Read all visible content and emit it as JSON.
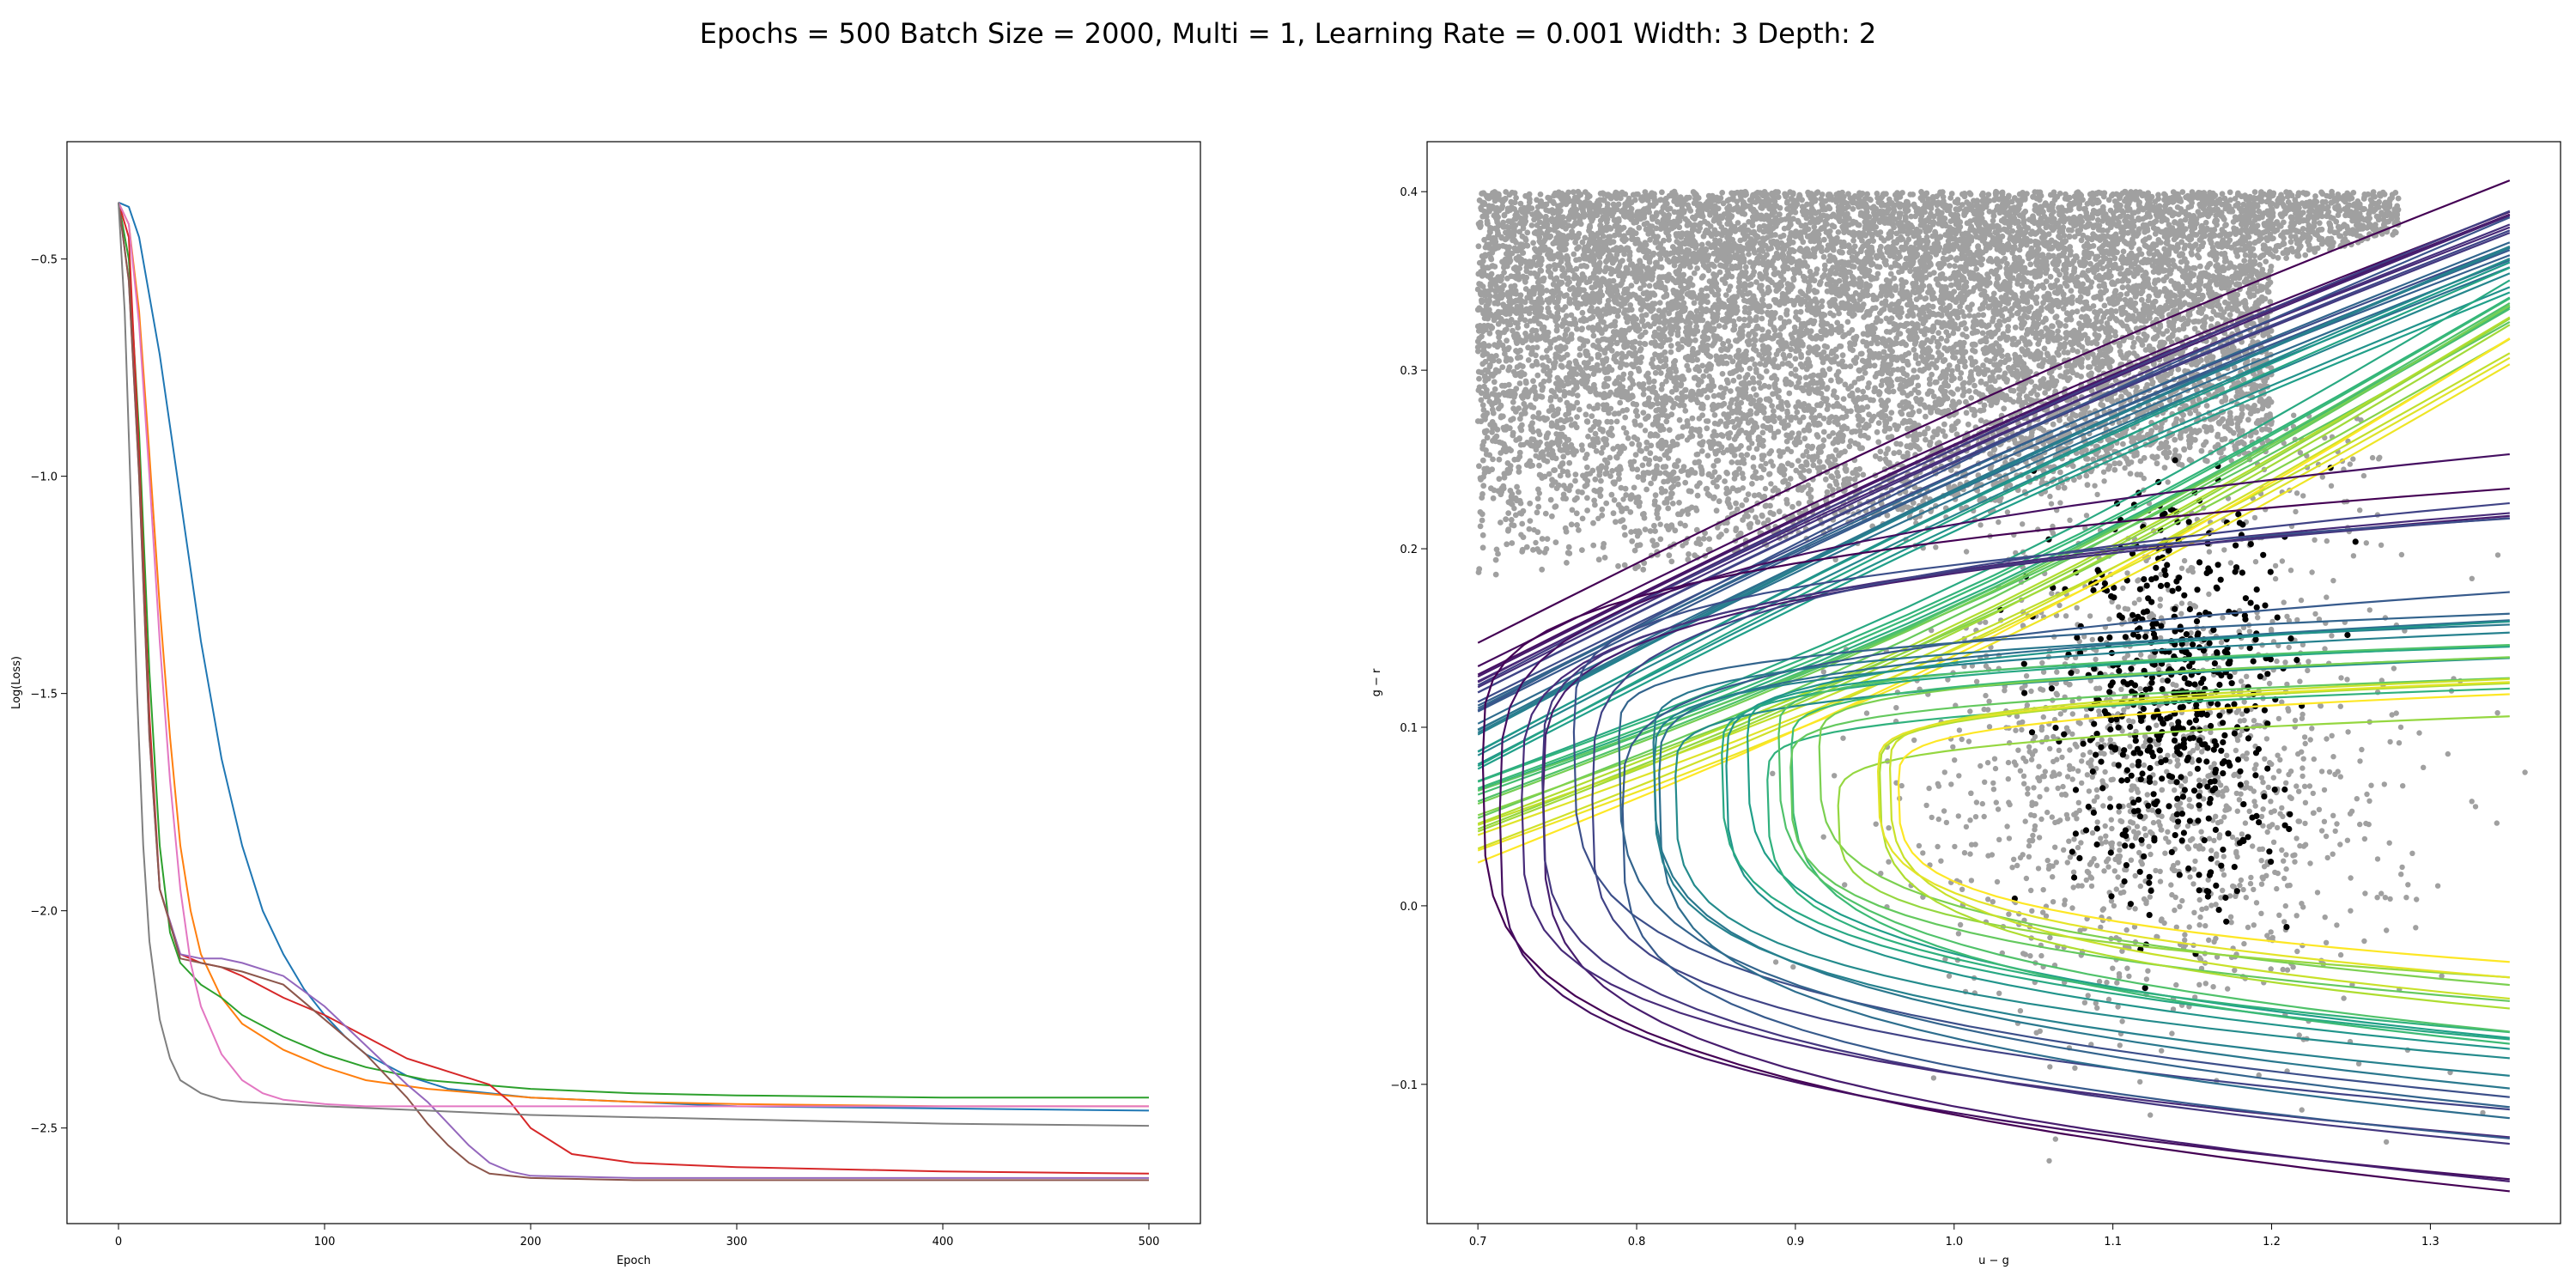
{
  "figure_title": "Epochs = 500 Batch Size = 2000, Multi = 1, Learning Rate = 0.001 Width: 3 Depth: 2",
  "chart_data": [
    {
      "type": "line",
      "title": "",
      "xlabel": "Epoch",
      "ylabel": "Log(Loss)",
      "xlim": [
        -25,
        525
      ],
      "ylim": [
        -2.72,
        -0.23
      ],
      "xticks": [
        0,
        100,
        200,
        300,
        400,
        500
      ],
      "xtick_labels": [
        "0",
        "100",
        "200",
        "300",
        "400",
        "500"
      ],
      "yticks": [
        -0.5,
        -1.0,
        -1.5,
        -2.0,
        -2.5
      ],
      "ytick_labels": [
        "−0.5",
        "−1.0",
        "−1.5",
        "−2.0",
        "−2.5"
      ],
      "grid": false,
      "legend": false,
      "series": [
        {
          "color": "#1f77b4",
          "x": [
            0,
            5,
            10,
            20,
            30,
            40,
            50,
            60,
            70,
            80,
            90,
            100,
            110,
            120,
            140,
            160,
            200,
            250,
            300,
            400,
            500
          ],
          "y": [
            -0.37,
            -0.38,
            -0.45,
            -0.72,
            -1.05,
            -1.38,
            -1.65,
            -1.85,
            -2.0,
            -2.1,
            -2.18,
            -2.24,
            -2.29,
            -2.33,
            -2.38,
            -2.41,
            -2.43,
            -2.44,
            -2.45,
            -2.455,
            -2.46
          ]
        },
        {
          "color": "#ff7f0e",
          "x": [
            0,
            5,
            10,
            15,
            20,
            25,
            30,
            35,
            40,
            50,
            60,
            80,
            100,
            120,
            150,
            200,
            250,
            300,
            400,
            500
          ],
          "y": [
            -0.37,
            -0.42,
            -0.62,
            -0.95,
            -1.3,
            -1.6,
            -1.85,
            -2.0,
            -2.1,
            -2.2,
            -2.26,
            -2.32,
            -2.36,
            -2.39,
            -2.41,
            -2.43,
            -2.44,
            -2.445,
            -2.45,
            -2.45
          ]
        },
        {
          "color": "#2ca02c",
          "x": [
            0,
            5,
            10,
            15,
            20,
            25,
            30,
            40,
            50,
            60,
            80,
            100,
            120,
            150,
            200,
            250,
            300,
            400,
            500
          ],
          "y": [
            -0.37,
            -0.5,
            -0.9,
            -1.45,
            -1.85,
            -2.05,
            -2.12,
            -2.17,
            -2.2,
            -2.24,
            -2.29,
            -2.33,
            -2.36,
            -2.39,
            -2.41,
            -2.42,
            -2.425,
            -2.43,
            -2.43
          ]
        },
        {
          "color": "#d62728",
          "x": [
            0,
            5,
            10,
            15,
            20,
            30,
            40,
            50,
            60,
            80,
            100,
            120,
            140,
            160,
            180,
            190,
            200,
            220,
            250,
            300,
            400,
            500
          ],
          "y": [
            -0.37,
            -0.45,
            -0.95,
            -1.55,
            -1.95,
            -2.1,
            -2.12,
            -2.13,
            -2.15,
            -2.2,
            -2.24,
            -2.29,
            -2.34,
            -2.37,
            -2.4,
            -2.44,
            -2.5,
            -2.56,
            -2.58,
            -2.59,
            -2.6,
            -2.605
          ]
        },
        {
          "color": "#9467bd",
          "x": [
            0,
            5,
            10,
            15,
            20,
            30,
            40,
            50,
            60,
            80,
            100,
            120,
            140,
            150,
            160,
            170,
            180,
            190,
            200,
            250,
            300,
            400,
            500
          ],
          "y": [
            -0.37,
            -0.55,
            -1.0,
            -1.6,
            -1.95,
            -2.1,
            -2.11,
            -2.11,
            -2.12,
            -2.15,
            -2.22,
            -2.31,
            -2.4,
            -2.44,
            -2.49,
            -2.54,
            -2.58,
            -2.6,
            -2.61,
            -2.615,
            -2.615,
            -2.615,
            -2.615
          ]
        },
        {
          "color": "#8c564b",
          "x": [
            0,
            5,
            10,
            15,
            20,
            30,
            40,
            50,
            60,
            80,
            100,
            120,
            140,
            150,
            160,
            170,
            180,
            200,
            250,
            300,
            400,
            500
          ],
          "y": [
            -0.37,
            -0.55,
            -1.0,
            -1.6,
            -1.95,
            -2.11,
            -2.12,
            -2.13,
            -2.14,
            -2.17,
            -2.25,
            -2.33,
            -2.43,
            -2.49,
            -2.54,
            -2.58,
            -2.605,
            -2.615,
            -2.62,
            -2.62,
            -2.62,
            -2.62
          ]
        },
        {
          "color": "#e377c2",
          "x": [
            0,
            5,
            10,
            15,
            20,
            25,
            30,
            35,
            40,
            50,
            60,
            70,
            80,
            90,
            100,
            120,
            150,
            200,
            300,
            500
          ],
          "y": [
            -0.37,
            -0.42,
            -0.65,
            -1.0,
            -1.38,
            -1.7,
            -1.95,
            -2.12,
            -2.22,
            -2.33,
            -2.39,
            -2.42,
            -2.435,
            -2.44,
            -2.445,
            -2.45,
            -2.45,
            -2.45,
            -2.45,
            -2.45
          ]
        },
        {
          "color": "#7f7f7f",
          "x": [
            0,
            3,
            6,
            9,
            12,
            15,
            20,
            25,
            30,
            40,
            50,
            60,
            80,
            100,
            150,
            200,
            300,
            400,
            500
          ],
          "y": [
            -0.37,
            -0.62,
            -1.05,
            -1.5,
            -1.85,
            -2.07,
            -2.25,
            -2.34,
            -2.39,
            -2.42,
            -2.435,
            -2.44,
            -2.445,
            -2.45,
            -2.46,
            -2.47,
            -2.48,
            -2.49,
            -2.495
          ]
        }
      ]
    },
    {
      "type": "scatter",
      "title": "",
      "xlabel": "u − g",
      "ylabel": "g − r",
      "xlim": [
        0.668,
        1.382
      ],
      "ylim": [
        -0.178,
        0.428
      ],
      "xticks": [
        0.7,
        0.8,
        0.9,
        1.0,
        1.1,
        1.2,
        1.3
      ],
      "xtick_labels": [
        "0.7",
        "0.8",
        "0.9",
        "1.0",
        "1.1",
        "1.2",
        "1.3"
      ],
      "yticks": [
        -0.1,
        0.0,
        0.1,
        0.2,
        0.3,
        0.4
      ],
      "ytick_labels": [
        "−0.1",
        "0.0",
        "0.1",
        "0.2",
        "0.3",
        "0.4"
      ],
      "grid": false,
      "legend": false,
      "scatter_series": [
        {
          "name": "",
          "color": "#a0a0a0",
          "approx_count": 16000
        },
        {
          "name": "",
          "color": "#000000",
          "approx_count": 560
        }
      ],
      "colormap": "viridis",
      "line_families": {
        "straight_lines": {
          "count": 44,
          "x_start": 0.7,
          "x_end": 1.35,
          "y_start_range": [
            0.03,
            0.14
          ],
          "y_end_range": [
            0.31,
            0.4
          ],
          "color_scale": [
            0,
            1
          ]
        },
        "hyperbolas": {
          "count": 26,
          "x_vertex_range": [
            0.71,
            0.97
          ],
          "y_vertex_range": [
            0.05,
            0.1
          ],
          "y_upper_end_range": [
            0.0,
            0.25
          ],
          "y_lower_end_range": [
            -0.15,
            -0.03
          ],
          "color_scale": [
            0,
            1
          ]
        }
      }
    }
  ]
}
